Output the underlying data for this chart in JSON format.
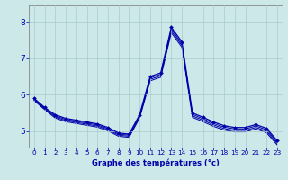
{
  "xlabel": "Graphe des températures (°c)",
  "background_color": "#cce8e8",
  "grid_color": "#aacccc",
  "line_color": "#0000aa",
  "xlim": [
    -0.5,
    23.5
  ],
  "ylim": [
    4.55,
    8.45
  ],
  "yticks": [
    5,
    6,
    7,
    8
  ],
  "ytick_labels": [
    "5",
    "6",
    "7",
    "8"
  ],
  "xticks": [
    0,
    1,
    2,
    3,
    4,
    5,
    6,
    7,
    8,
    9,
    10,
    11,
    12,
    13,
    14,
    15,
    16,
    17,
    18,
    19,
    20,
    21,
    22,
    23
  ],
  "series_main": [
    5.9,
    5.65,
    5.45,
    5.35,
    5.3,
    5.25,
    5.2,
    5.1,
    4.95,
    4.92,
    5.45,
    6.5,
    6.6,
    7.85,
    7.45,
    5.5,
    5.38,
    5.25,
    5.15,
    5.1,
    5.1,
    5.18,
    5.08,
    4.75
  ],
  "series_extra": [
    [
      5.88,
      5.63,
      5.42,
      5.32,
      5.27,
      5.22,
      5.17,
      5.07,
      4.92,
      4.89,
      5.42,
      6.46,
      6.56,
      7.8,
      7.4,
      5.46,
      5.34,
      5.21,
      5.11,
      5.06,
      5.06,
      5.14,
      5.04,
      4.71
    ],
    [
      5.86,
      5.61,
      5.39,
      5.29,
      5.24,
      5.19,
      5.14,
      5.04,
      4.89,
      4.86,
      5.39,
      6.42,
      6.52,
      7.75,
      7.35,
      5.42,
      5.3,
      5.17,
      5.07,
      5.02,
      5.02,
      5.1,
      5.0,
      4.67
    ],
    [
      5.84,
      5.59,
      5.36,
      5.26,
      5.21,
      5.16,
      5.11,
      5.01,
      4.86,
      4.83,
      5.36,
      6.38,
      6.48,
      7.7,
      7.3,
      5.38,
      5.26,
      5.13,
      5.03,
      4.98,
      4.98,
      5.06,
      4.96,
      4.63
    ]
  ]
}
